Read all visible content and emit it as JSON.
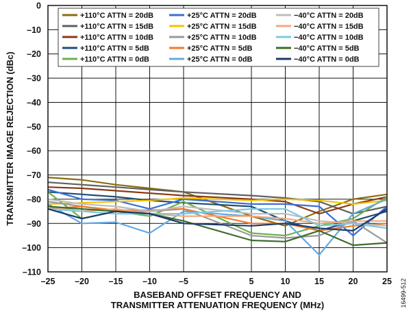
{
  "figure_id": "16499-512",
  "chart_data": {
    "type": "line",
    "xlabel_lines": [
      "BASEBAND OFFSET FREQUENCY AND",
      "TRANSMITTER ATTENUATION FREQUENCY (MHz)"
    ],
    "ylabel": "TRANSMITTER IMAGE REJECTION (dBc)",
    "xlim": [
      -25,
      25
    ],
    "ylim": [
      -110,
      0
    ],
    "xticks": [
      -25,
      -20,
      -15,
      -10,
      -5,
      5,
      10,
      15,
      20,
      25
    ],
    "xtick_labels": [
      "–25",
      "–20",
      "–15",
      "–10",
      "–5",
      "5",
      "10",
      "15",
      "20",
      "25"
    ],
    "yticks": [
      0,
      -10,
      -20,
      -30,
      -40,
      -50,
      -60,
      -70,
      -80,
      -90,
      -100,
      -110
    ],
    "ytick_labels": [
      "0",
      "–10",
      "–20",
      "–30",
      "–40",
      "–50",
      "–60",
      "–70",
      "–80",
      "–90",
      "–100",
      "–110"
    ],
    "grid": true,
    "legend_position": "top",
    "x": [
      -25,
      -20,
      -15,
      -10,
      -5,
      5,
      10,
      15,
      20,
      25
    ],
    "series": [
      {
        "name": "+110°C ATTN = 20dB",
        "color": "#8a6d0b",
        "values": [
          -71,
          -72,
          -74,
          -75.5,
          -77,
          -87,
          -91,
          -85,
          -80,
          -78
        ]
      },
      {
        "name": "+110°C ATTN = 15dB",
        "color": "#5f5f5f",
        "values": [
          -73,
          -74,
          -75,
          -76,
          -77,
          -78.5,
          -79.5,
          -81,
          -86,
          -83
        ]
      },
      {
        "name": "+110°C ATTN = 10dB",
        "color": "#8b3a14",
        "values": [
          -75,
          -75.5,
          -76.5,
          -77.5,
          -78.5,
          -80,
          -81,
          -86,
          -82,
          -79
        ]
      },
      {
        "name": "+110°C ATTN = 5dB",
        "color": "#1f4e79",
        "values": [
          -77,
          -78,
          -79,
          -80.5,
          -81.5,
          -83,
          -89,
          -93,
          -89,
          -85
        ]
      },
      {
        "name": "+110°C ATTN = 0dB",
        "color": "#6ab04c",
        "values": [
          -77,
          -88,
          -85,
          -87,
          -81,
          -94,
          -95,
          -91,
          -88,
          -79
        ]
      },
      {
        "name": "+25°C ATTN = 20dB",
        "color": "#3a6fd8",
        "values": [
          -76,
          -80,
          -80.5,
          -84,
          -80,
          -82,
          -82,
          -83,
          -95,
          -83
        ]
      },
      {
        "name": "+25°C ATTN = 15dB",
        "color": "#f2c200",
        "values": [
          -82,
          -81.5,
          -81,
          -80.5,
          -79.5,
          -80.5,
          -80,
          -80.5,
          -82,
          -80.5
        ]
      },
      {
        "name": "+25°C ATTN = 10dB",
        "color": "#9a9a9a",
        "values": [
          -81,
          -83,
          -85,
          -85,
          -84,
          -95,
          -96,
          -95,
          -89,
          -98
        ]
      },
      {
        "name": "+25°C ATTN = 5dB",
        "color": "#f07a2a",
        "values": [
          -84,
          -83,
          -84.5,
          -84.5,
          -84,
          -90,
          -90,
          -93,
          -91,
          -90
        ]
      },
      {
        "name": "+25°C ATTN = 0dB",
        "color": "#66a8e0",
        "values": [
          -82,
          -90,
          -89.5,
          -94,
          -85,
          -87,
          -89,
          -103,
          -86,
          -80
        ]
      },
      {
        "name": "−40°C ATTN = 20dB",
        "color": "#bdbdbd",
        "values": [
          -80,
          -82,
          -83,
          -85,
          -83,
          -86,
          -86,
          -89,
          -90,
          -91
        ]
      },
      {
        "name": "−40°C ATTN = 15dB",
        "color": "#f0a878",
        "values": [
          -83,
          -85,
          -84,
          -86,
          -87,
          -87,
          -88,
          -90,
          -89,
          -89
        ]
      },
      {
        "name": "−40°C ATTN = 10dB",
        "color": "#7ec8e3",
        "values": [
          -84,
          -85,
          -86,
          -86,
          -86,
          -84,
          -84,
          -91,
          -90,
          -92
        ]
      },
      {
        "name": "−40°C ATTN = 5dB",
        "color": "#3d6b2a",
        "values": [
          -83,
          -84,
          -85,
          -86,
          -89,
          -97,
          -97.5,
          -93,
          -99,
          -98
        ]
      },
      {
        "name": "−40°C ATTN = 0dB",
        "color": "#1c3a6b",
        "values": [
          -84,
          -88,
          -85,
          -86,
          -90,
          -91,
          -90,
          -92,
          -93,
          -84
        ]
      }
    ]
  }
}
